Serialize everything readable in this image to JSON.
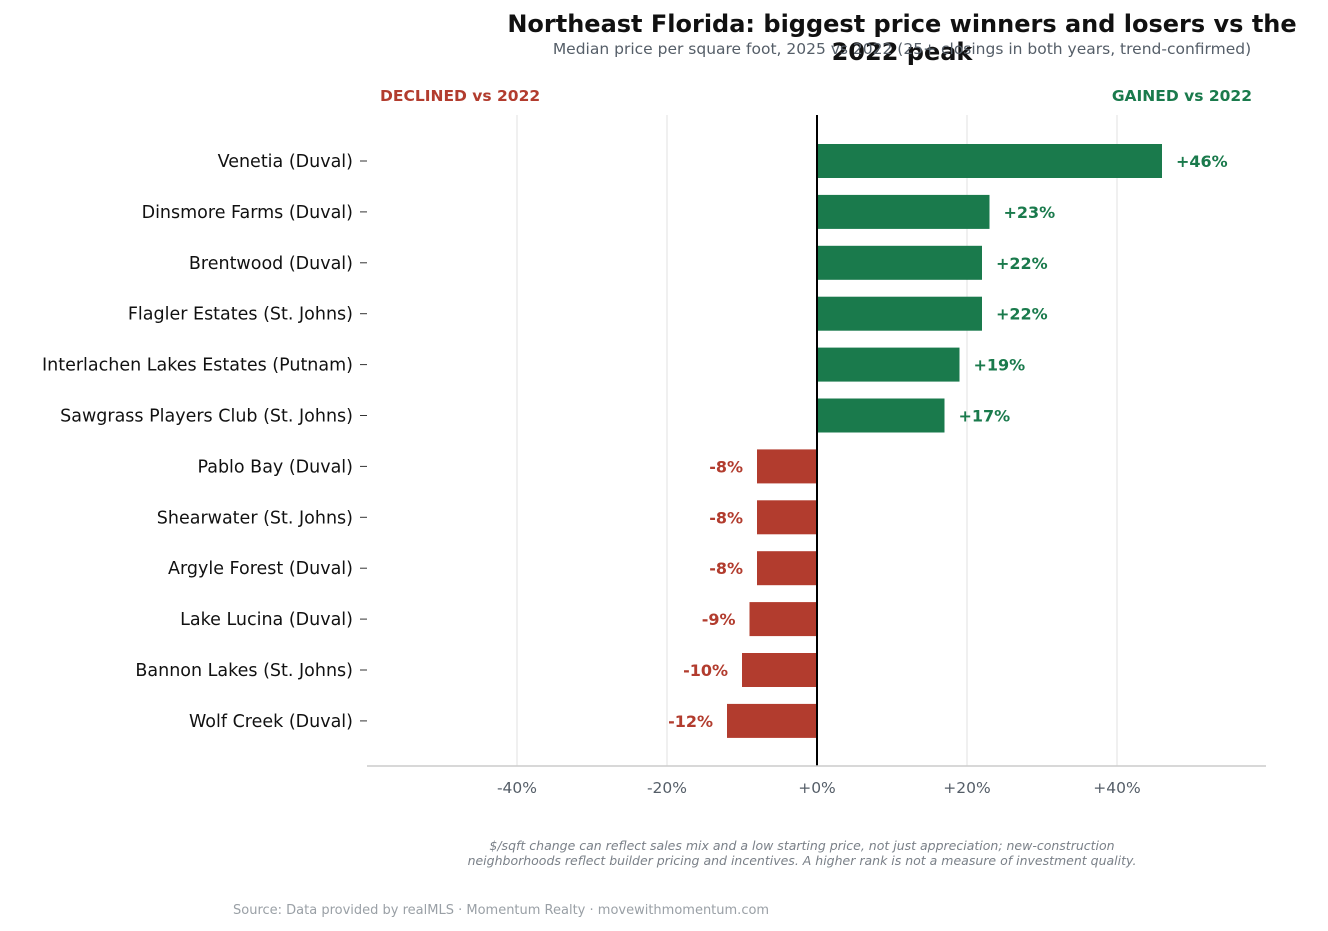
{
  "header": {
    "title": "Northeast Florida: biggest price winners and losers vs the 2022 peak",
    "subtitle": "Median price per square foot, 2025 vs 2022  (25+ closings in both years, trend-confirmed)"
  },
  "colors": {
    "gain": "#1a7a4c",
    "loss": "#b23c2e",
    "grid": "#e6e6e6",
    "text": "#111111",
    "tick": "#555e68"
  },
  "chart_data": {
    "type": "bar",
    "orientation": "horizontal",
    "side_labels": {
      "left": "DECLINED vs 2022",
      "right": "GAINED vs 2022"
    },
    "categories": [
      "Venetia  (Duval)",
      "Dinsmore Farms  (Duval)",
      "Brentwood  (Duval)",
      "Flagler Estates  (St. Johns)",
      "Interlachen Lakes Estates  (Putnam)",
      "Sawgrass Players Club  (St. Johns)",
      "Pablo Bay  (Duval)",
      "Shearwater  (St. Johns)",
      "Argyle Forest  (Duval)",
      "Lake Lucina  (Duval)",
      "Bannon Lakes  (St. Johns)",
      "Wolf Creek  (Duval)"
    ],
    "values": [
      46,
      23,
      22,
      22,
      19,
      17,
      -8,
      -8,
      -8,
      -9,
      -10,
      -12
    ],
    "value_labels": [
      "+46%",
      "+23%",
      "+22%",
      "+22%",
      "+19%",
      "+17%",
      "-8%",
      "-8%",
      "-8%",
      "-9%",
      "-10%",
      "-12%"
    ],
    "xticks": [
      -40,
      -20,
      0,
      20,
      40
    ],
    "xtick_labels": [
      "-40%",
      "-20%",
      "+0%",
      "+20%",
      "+40%"
    ],
    "xlim": [
      -60,
      60
    ],
    "grid": true
  },
  "footer": {
    "note_line1": "$/sqft change can reflect sales mix and a low starting price, not just appreciation; new-construction",
    "note_line2": "neighborhoods reflect builder pricing and incentives. A higher rank is not a measure of investment quality.",
    "source": "Source: Data provided by realMLS  ·  Momentum Realty  ·  movewithmomentum.com"
  }
}
